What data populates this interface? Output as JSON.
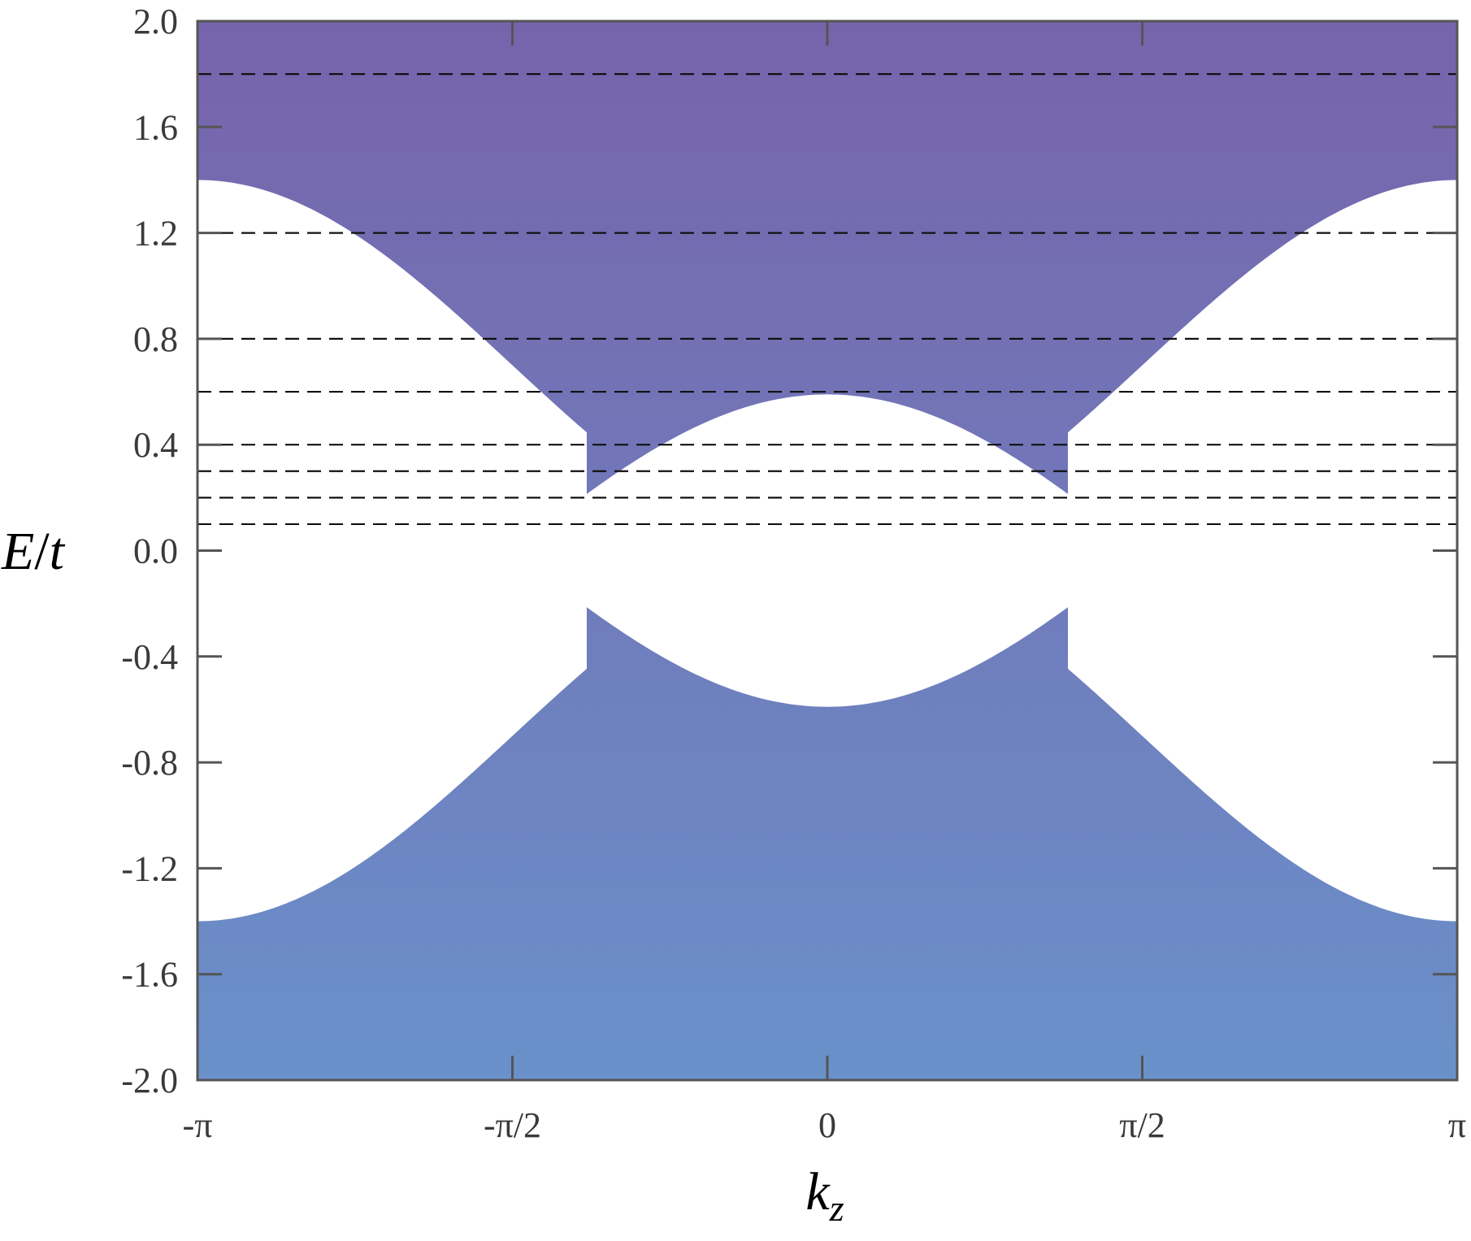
{
  "chart_data": {
    "type": "area",
    "xlabel_main": "k",
    "xlabel_sub": "z",
    "ylabel_main": "E",
    "ylabel_sep": "/",
    "ylabel_tail": "t",
    "xlim": [
      -3.14159,
      3.14159
    ],
    "ylim": [
      -2.0,
      2.0
    ],
    "x_ticks": [
      {
        "value": -3.14159,
        "label": "-π"
      },
      {
        "value": -1.5708,
        "label": "-π/2"
      },
      {
        "value": 0,
        "label": "0"
      },
      {
        "value": 1.5708,
        "label": "π/2"
      },
      {
        "value": 3.14159,
        "label": "π"
      }
    ],
    "y_ticks": [
      {
        "value": 2.0,
        "label": "2.0"
      },
      {
        "value": 1.6,
        "label": "1.6"
      },
      {
        "value": 1.2,
        "label": "1.2"
      },
      {
        "value": 0.8,
        "label": "0.8"
      },
      {
        "value": 0.4,
        "label": "0.4"
      },
      {
        "value": 0.0,
        "label": "0.0"
      },
      {
        "value": -0.4,
        "label": "-0.4"
      },
      {
        "value": -0.8,
        "label": "-0.8"
      },
      {
        "value": -1.2,
        "label": "-1.2"
      },
      {
        "value": -1.6,
        "label": "-1.6"
      },
      {
        "value": -2.0,
        "label": "-2.0"
      }
    ],
    "band_edges": {
      "outer_amplitude": 1.4,
      "inner_amplitude": 0.59,
      "dirac_points_x": [
        -1.2,
        1.2
      ]
    },
    "dashed_energy_levels": [
      1.8,
      1.2,
      0.8,
      0.6,
      0.4,
      0.3,
      0.2,
      0.1
    ],
    "grid": false,
    "colors": {
      "fill_top": "#7763ab",
      "fill_bottom": "#6a91ca",
      "axis": "#555555",
      "dashed": "#111111"
    }
  }
}
